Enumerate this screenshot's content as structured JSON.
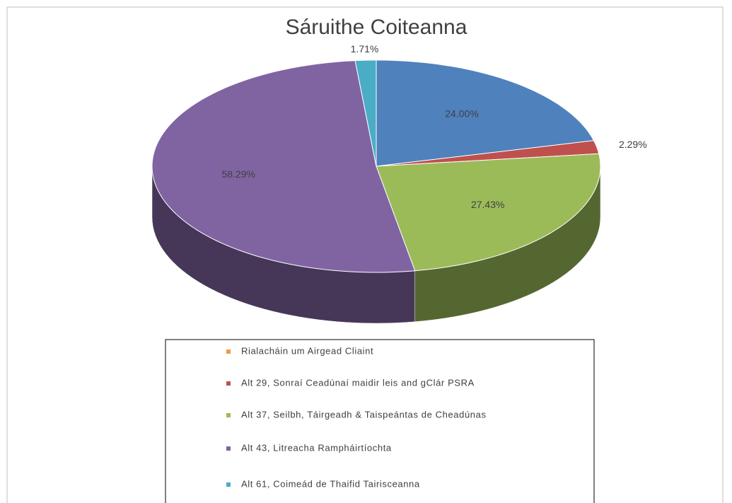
{
  "chart_data": {
    "type": "pie3d",
    "title": "Sáruithe Coiteanna",
    "categories": [
      "Rialacháin um Airgead Cliaint",
      "Alt 29, Sonraí Ceadúnaí maidir leis and gClár PSRA",
      "Alt 37, Seilbh, Táirgeadh & Taispeántas de Cheadúnas",
      "Alt 43, Litreacha Rampháirtíochta",
      "Alt 61, Coimeád de Thaifid Tairisceanna"
    ],
    "values": [
      24.0,
      2.29,
      27.43,
      58.29,
      1.71
    ],
    "value_labels": [
      "24.00%",
      "2.29%",
      "27.43%",
      "58.29%",
      "1.71%"
    ],
    "colors": [
      "#4f81bd",
      "#c0504d",
      "#9bbb59",
      "#8064a2",
      "#4bacc6"
    ],
    "legend_colors": [
      "#f79646",
      "#c0504d",
      "#9bbb59",
      "#8064a2",
      "#4bacc6"
    ]
  }
}
